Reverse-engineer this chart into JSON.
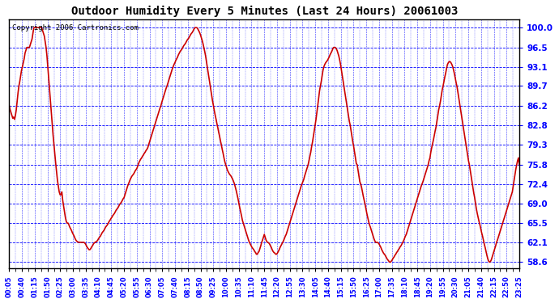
{
  "title": "Outdoor Humidity Every 5 Minutes (Last 24 Hours) 20061003",
  "copyright": "Copyright 2006 Cartronics.com",
  "plot_bg_color": "#ffffff",
  "fig_bg_color": "#ffffff",
  "line_color": "#cc0000",
  "line_width": 1.2,
  "grid_color": "#0000cc",
  "yticks": [
    58.6,
    62.1,
    65.5,
    69.0,
    72.4,
    75.8,
    79.3,
    82.8,
    86.2,
    89.7,
    93.1,
    96.5,
    100.0
  ],
  "ylim": [
    57.5,
    101.5
  ],
  "xtick_labels": [
    "00:05",
    "00:40",
    "01:15",
    "01:50",
    "02:25",
    "03:00",
    "03:35",
    "04:10",
    "04:45",
    "05:20",
    "05:55",
    "06:30",
    "07:05",
    "07:40",
    "08:15",
    "08:50",
    "09:25",
    "10:00",
    "10:35",
    "11:10",
    "11:45",
    "12:20",
    "12:55",
    "13:30",
    "14:05",
    "14:40",
    "15:15",
    "15:50",
    "16:25",
    "17:00",
    "17:35",
    "18:10",
    "18:45",
    "19:20",
    "19:55",
    "20:30",
    "21:05",
    "21:40",
    "22:15",
    "22:50",
    "23:25"
  ],
  "humidity_values": [
    86.2,
    85.5,
    85.0,
    84.5,
    84.0,
    84.2,
    83.8,
    84.5,
    85.5,
    87.0,
    88.5,
    89.7,
    90.5,
    91.5,
    92.5,
    93.1,
    93.8,
    94.5,
    95.5,
    96.0,
    96.5,
    96.5,
    96.5,
    96.5,
    97.0,
    97.5,
    98.0,
    99.0,
    100.0,
    100.0,
    100.0,
    100.0,
    100.0,
    100.0,
    100.0,
    100.0,
    100.0,
    100.0,
    99.5,
    99.0,
    98.5,
    97.5,
    96.5,
    95.0,
    93.0,
    91.0,
    89.0,
    87.0,
    85.0,
    83.0,
    81.0,
    79.3,
    77.5,
    76.0,
    74.5,
    73.0,
    72.0,
    71.0,
    70.5,
    70.5,
    71.0,
    69.5,
    68.5,
    67.5,
    66.5,
    65.8,
    65.5,
    65.5,
    65.2,
    64.8,
    64.5,
    64.2,
    63.8,
    63.5,
    63.2,
    62.8,
    62.5,
    62.3,
    62.2,
    62.1,
    62.1,
    62.1,
    62.1,
    62.1,
    62.1,
    62.1,
    62.0,
    61.8,
    61.5,
    61.2,
    61.0,
    60.8,
    60.8,
    61.0,
    61.3,
    61.5,
    61.8,
    62.0,
    62.1,
    62.2,
    62.3,
    62.5,
    62.8,
    63.0,
    63.2,
    63.5,
    63.8,
    64.0,
    64.2,
    64.5,
    64.8,
    65.0,
    65.2,
    65.5,
    65.8,
    66.0,
    66.3,
    66.5,
    66.8,
    67.0,
    67.2,
    67.5,
    67.8,
    68.0,
    68.2,
    68.5,
    68.8,
    69.0,
    69.2,
    69.5,
    69.8,
    70.0,
    70.5,
    71.0,
    71.5,
    72.0,
    72.4,
    72.8,
    73.2,
    73.5,
    73.8,
    74.0,
    74.2,
    74.5,
    74.8,
    75.0,
    75.3,
    75.8,
    76.2,
    76.5,
    76.8,
    77.0,
    77.3,
    77.5,
    77.8,
    78.0,
    78.3,
    78.5,
    78.8,
    79.3,
    79.8,
    80.3,
    80.8,
    81.3,
    81.8,
    82.3,
    82.8,
    83.3,
    83.8,
    84.3,
    84.8,
    85.3,
    85.8,
    86.2,
    86.8,
    87.3,
    87.8,
    88.3,
    88.8,
    89.3,
    89.7,
    90.2,
    90.7,
    91.2,
    91.7,
    92.2,
    92.7,
    93.1,
    93.5,
    93.8,
    94.2,
    94.5,
    94.8,
    95.2,
    95.5,
    95.8,
    96.0,
    96.2,
    96.5,
    96.8,
    97.0,
    97.2,
    97.5,
    97.8,
    98.0,
    98.2,
    98.5,
    98.8,
    99.0,
    99.2,
    99.5,
    99.8,
    100.0,
    100.0,
    100.0,
    99.8,
    99.5,
    99.2,
    98.8,
    98.3,
    97.8,
    97.2,
    96.5,
    95.8,
    95.0,
    94.0,
    93.1,
    92.0,
    91.0,
    90.0,
    89.0,
    88.0,
    87.0,
    86.2,
    85.3,
    84.5,
    83.8,
    83.0,
    82.3,
    81.5,
    80.8,
    80.0,
    79.3,
    78.5,
    77.8,
    77.0,
    76.3,
    75.8,
    75.3,
    74.8,
    74.5,
    74.2,
    74.0,
    73.8,
    73.5,
    73.2,
    72.8,
    72.4,
    71.8,
    71.2,
    70.5,
    69.8,
    69.0,
    68.2,
    67.5,
    66.8,
    66.0,
    65.5,
    65.0,
    64.5,
    64.0,
    63.5,
    63.0,
    62.5,
    62.1,
    61.8,
    61.5,
    61.2,
    61.0,
    60.8,
    60.5,
    60.3,
    60.0,
    60.0,
    60.3,
    60.5,
    61.0,
    61.5,
    62.1,
    62.5,
    63.0,
    63.5,
    63.0,
    62.5,
    62.2,
    62.1,
    62.0,
    61.8,
    61.5,
    61.2,
    60.8,
    60.5,
    60.3,
    60.2,
    60.0,
    60.0,
    60.2,
    60.5,
    60.8,
    61.2,
    61.5,
    61.8,
    62.1,
    62.4,
    62.8,
    63.2,
    63.5,
    64.0,
    64.5,
    65.0,
    65.5,
    66.0,
    66.5,
    67.0,
    67.5,
    68.0,
    68.5,
    69.0,
    69.5,
    70.0,
    70.5,
    71.0,
    71.5,
    72.0,
    72.4,
    72.8,
    73.2,
    73.8,
    74.3,
    74.8,
    75.3,
    75.8,
    76.5,
    77.3,
    78.0,
    79.0,
    79.8,
    80.8,
    81.8,
    82.8,
    83.8,
    85.0,
    86.2,
    87.5,
    88.8,
    89.7,
    90.5,
    91.5,
    92.5,
    93.1,
    93.5,
    93.8,
    94.0,
    94.2,
    94.5,
    94.8,
    95.2,
    95.5,
    95.8,
    96.2,
    96.5,
    96.5,
    96.5,
    96.3,
    96.0,
    95.5,
    95.0,
    94.3,
    93.5,
    92.5,
    91.5,
    90.5,
    89.5,
    88.5,
    87.5,
    86.5,
    85.5,
    84.5,
    83.5,
    82.8,
    81.8,
    80.8,
    79.8,
    79.0,
    78.0,
    77.0,
    76.0,
    75.8,
    74.8,
    73.8,
    72.8,
    72.4,
    71.8,
    71.0,
    70.2,
    69.5,
    68.8,
    68.0,
    67.2,
    66.5,
    65.8,
    65.2,
    64.8,
    64.3,
    63.8,
    63.3,
    62.8,
    62.4,
    62.1,
    62.1,
    62.1,
    62.0,
    61.8,
    61.5,
    61.2,
    60.8,
    60.5,
    60.2,
    60.0,
    59.8,
    59.5,
    59.2,
    59.0,
    58.8,
    58.6,
    58.6,
    58.8,
    59.0,
    59.3,
    59.5,
    59.8,
    60.0,
    60.3,
    60.5,
    60.8,
    61.0,
    61.3,
    61.5,
    61.8,
    62.1,
    62.4,
    62.8,
    63.2,
    63.5,
    64.0,
    64.5,
    65.0,
    65.5,
    66.0,
    66.5,
    67.0,
    67.5,
    68.0,
    68.5,
    69.0,
    69.5,
    70.0,
    70.5,
    71.0,
    71.5,
    72.0,
    72.4,
    72.8,
    73.3,
    73.8,
    74.3,
    74.8,
    75.3,
    75.8,
    76.5,
    77.0,
    78.0,
    78.8,
    79.5,
    80.2,
    81.0,
    81.8,
    82.5,
    83.5,
    84.5,
    85.5,
    86.2,
    87.0,
    88.0,
    89.0,
    89.7,
    90.5,
    91.3,
    92.0,
    92.8,
    93.5,
    93.8,
    94.0,
    94.0,
    93.8,
    93.5,
    93.1,
    92.5,
    91.8,
    91.0,
    90.2,
    89.5,
    88.5,
    87.5,
    86.5,
    85.5,
    84.5,
    83.5,
    82.5,
    81.5,
    80.5,
    79.5,
    78.5,
    77.5,
    76.5,
    75.8,
    74.8,
    73.8,
    72.8,
    71.8,
    70.8,
    70.0,
    69.0,
    68.0,
    67.2,
    66.5,
    65.8,
    65.2,
    64.5,
    63.8,
    63.2,
    62.5,
    61.8,
    61.2,
    60.5,
    59.8,
    59.2,
    58.8,
    58.6,
    58.7,
    59.0,
    59.5,
    60.0,
    60.5,
    61.0,
    61.5,
    62.1,
    62.5,
    63.0,
    63.5,
    64.0,
    64.5,
    65.0,
    65.5,
    66.0,
    66.5,
    67.0,
    67.5,
    68.0,
    68.5,
    69.0,
    69.5,
    70.0,
    70.5,
    71.0,
    72.0,
    73.0,
    74.0,
    75.0,
    75.8,
    76.5,
    77.0,
    75.8
  ]
}
